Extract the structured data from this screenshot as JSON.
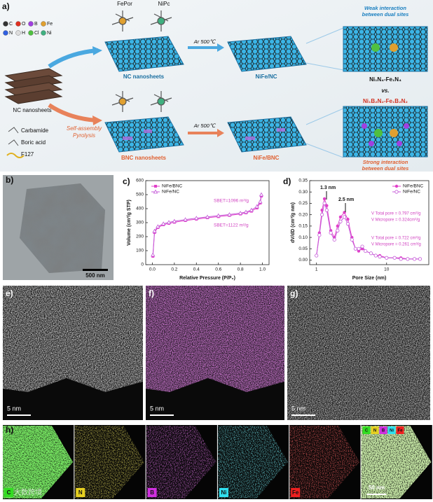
{
  "panel_labels": [
    "a)",
    "b)",
    "c)",
    "d)",
    "e)",
    "f)",
    "g)",
    "h)"
  ],
  "schematic": {
    "atoms": [
      {
        "symbol": "C",
        "color": "#333333"
      },
      {
        "symbol": "O",
        "color": "#e03020"
      },
      {
        "symbol": "B",
        "color": "#a040e0"
      },
      {
        "symbol": "Fe",
        "color": "#e0a030"
      },
      {
        "symbol": "N",
        "color": "#3060e0"
      },
      {
        "symbol": "H",
        "color": "#dddddd"
      },
      {
        "symbol": "Cl",
        "color": "#50c040"
      },
      {
        "symbol": "Ni",
        "color": "#40b080"
      }
    ],
    "fepor": "FePor",
    "nipc": "NiPc",
    "source": "NC nanosheets",
    "reagents": [
      "Carbamide",
      "Boric acid",
      "F127"
    ],
    "process": [
      "Self-assembly",
      "Pyrolysis"
    ],
    "top_sheet": "NC nanosheets",
    "bottom_sheet": "BNC nanosheets",
    "anneal": [
      "Ar 500℃",
      "Ar 500℃"
    ],
    "top_product": "NiFe/NC",
    "bottom_product": "NiFe/BNC",
    "weak": [
      "Weak interaction",
      "between dual sites"
    ],
    "strong": [
      "Strong interaction",
      "between dual sites"
    ],
    "top_site": "Ni₁N₄-Fe₁N₄",
    "vs": "vs.",
    "bottom_site": "Ni₁B₂N₂-Fe₁B₂N₂"
  },
  "tem": {
    "scale_bar": "500 nm"
  },
  "isotherm": {
    "type": "line",
    "xlabel": "Relative Pressure (P/P₀)",
    "ylabel": "Volume (cm³/g STP)",
    "xlim": [
      -0.06,
      1.06
    ],
    "ylim": [
      0,
      600
    ],
    "xticks": [
      {
        "value": 0,
        "label": "0.0"
      },
      {
        "value": 0.2,
        "label": "0.2"
      },
      {
        "value": 0.4,
        "label": "0.4"
      },
      {
        "value": 0.6,
        "label": "0.6"
      },
      {
        "value": 0.8,
        "label": "0.8"
      },
      {
        "value": 1,
        "label": "1.0"
      }
    ],
    "yticks": [
      0,
      100,
      200,
      300,
      400,
      500,
      600
    ],
    "legend": "upper left",
    "x": [
      0.005,
      0.02,
      0.05,
      0.1,
      0.15,
      0.2,
      0.3,
      0.4,
      0.5,
      0.6,
      0.7,
      0.8,
      0.85,
      0.9,
      0.95,
      0.98,
      0.99
    ],
    "series": [
      {
        "name": "NiFe/BNC",
        "color": "#e23fc9",
        "marker": "square",
        "values": [
          60,
          230,
          265,
          285,
          295,
          303,
          315,
          325,
          335,
          343,
          352,
          362,
          370,
          382,
          405,
          440,
          490
        ]
      },
      {
        "name": "NiFe/NC",
        "color": "#c45ad8",
        "marker": "triangle",
        "values": [
          70,
          240,
          272,
          292,
          302,
          310,
          322,
          332,
          341,
          350,
          358,
          368,
          376,
          390,
          415,
          450,
          500
        ]
      }
    ],
    "annotations": [
      "SBET=1096 m²/g",
      "SBET=1122 m²/g"
    ]
  },
  "pore_size": {
    "type": "line",
    "xscale": "log",
    "xlabel": "Pore Size (nm)",
    "ylabel": "dV/dD (cm³/g nm)",
    "xlim": [
      0.8,
      40
    ],
    "ylim": [
      -0.02,
      0.35
    ],
    "xticks": [
      1,
      10
    ],
    "yticks": [
      {
        "value": 0,
        "label": "0.00"
      },
      {
        "value": 0.05,
        "label": "0.05"
      },
      {
        "value": 0.1,
        "label": "0.10"
      },
      {
        "value": 0.15,
        "label": "0.15"
      },
      {
        "value": 0.2,
        "label": "0.20"
      },
      {
        "value": 0.25,
        "label": "0.25"
      },
      {
        "value": 0.3,
        "label": "0.30"
      },
      {
        "value": 0.35,
        "label": "0.35"
      }
    ],
    "legend": "upper right",
    "x": [
      1.0,
      1.1,
      1.2,
      1.3,
      1.4,
      1.6,
      1.8,
      2.0,
      2.2,
      2.5,
      2.8,
      3.2,
      3.6,
      4.0,
      4.5,
      5,
      6,
      7,
      8,
      10,
      13,
      16,
      20,
      25,
      30
    ],
    "series": [
      {
        "name": "NiFe/BNC",
        "color": "#e23fc9",
        "marker": "circle",
        "values": [
          0.02,
          0.12,
          0.22,
          0.27,
          0.24,
          0.13,
          0.1,
          0.15,
          0.19,
          0.21,
          0.18,
          0.1,
          0.05,
          0.04,
          0.05,
          0.04,
          0.03,
          0.02,
          0.02,
          0.01,
          0.01,
          0.01,
          0.005,
          0.005,
          0.005
        ]
      },
      {
        "name": "NiFe/NC",
        "color": "#c45ad8",
        "marker": "open-circle",
        "values": [
          0.02,
          0.11,
          0.2,
          0.25,
          0.22,
          0.12,
          0.09,
          0.13,
          0.17,
          0.19,
          0.16,
          0.09,
          0.05,
          0.05,
          0.06,
          0.04,
          0.03,
          0.02,
          0.015,
          0.01,
          0.01,
          0.005,
          0.005,
          0.005,
          0.005
        ]
      }
    ],
    "annotations": [
      "1.3 nm",
      "2.5 nm",
      "V Total pore = 0.797 cm³/g",
      "V Micropore = 0.324cm³/g",
      "V Total pore = 0.722 cm³/g",
      "V Micropore = 0.261 cm³/g"
    ]
  },
  "maps": {
    "scale_bars": [
      "5 nm",
      "5 nm",
      "5 nm"
    ],
    "elements": [
      "C",
      "N",
      "B",
      "Ni",
      "Fe"
    ],
    "colors": [
      "#33dd22",
      "#e6d020",
      "#d030e0",
      "#30e0f0",
      "#f02020"
    ],
    "composite_scale_bar": "50 nm",
    "watermark": "大数跨境"
  }
}
